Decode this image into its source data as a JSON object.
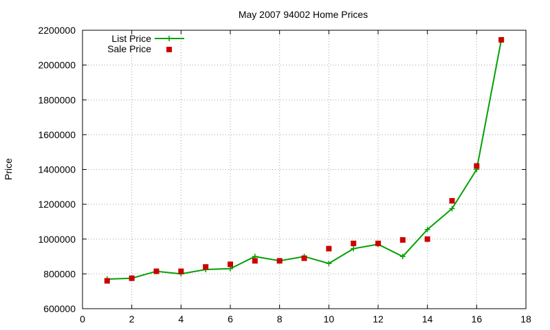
{
  "chart_data": {
    "type": "line",
    "title": "May 2007 94002 Home Prices",
    "xlabel": "",
    "ylabel": "Price",
    "xlim": [
      0,
      18
    ],
    "ylim": [
      600000,
      2200000
    ],
    "x_ticks": [
      0,
      2,
      4,
      6,
      8,
      10,
      12,
      14,
      16,
      18
    ],
    "y_ticks": [
      600000,
      800000,
      1000000,
      1200000,
      1400000,
      1600000,
      1800000,
      2000000,
      2200000
    ],
    "x_tick_labels": [
      "0",
      "2",
      "4",
      "6",
      "8",
      "10",
      "12",
      "14",
      "16",
      "18"
    ],
    "y_tick_labels": [
      "600000",
      "800000",
      "1000000",
      "1200000",
      "1400000",
      "1600000",
      "1800000",
      "2000000",
      "2200000"
    ],
    "grid": true,
    "legend_position": "top-left",
    "x": [
      1,
      2,
      3,
      4,
      5,
      6,
      7,
      8,
      9,
      10,
      11,
      12,
      13,
      14,
      15,
      16,
      17
    ],
    "series": [
      {
        "name": "List Price",
        "style": "line+cross",
        "color": "#00a000",
        "values": [
          770000,
          775000,
          815000,
          800000,
          825000,
          830000,
          900000,
          875000,
          900000,
          860000,
          945000,
          970000,
          900000,
          1055000,
          1175000,
          1400000,
          2145000
        ]
      },
      {
        "name": "Sale Price",
        "style": "square-points",
        "color": "#cc0000",
        "values": [
          760000,
          775000,
          815000,
          815000,
          840000,
          855000,
          875000,
          875000,
          890000,
          945000,
          975000,
          975000,
          995000,
          1000000,
          1220000,
          1420000,
          2145000
        ]
      }
    ]
  }
}
